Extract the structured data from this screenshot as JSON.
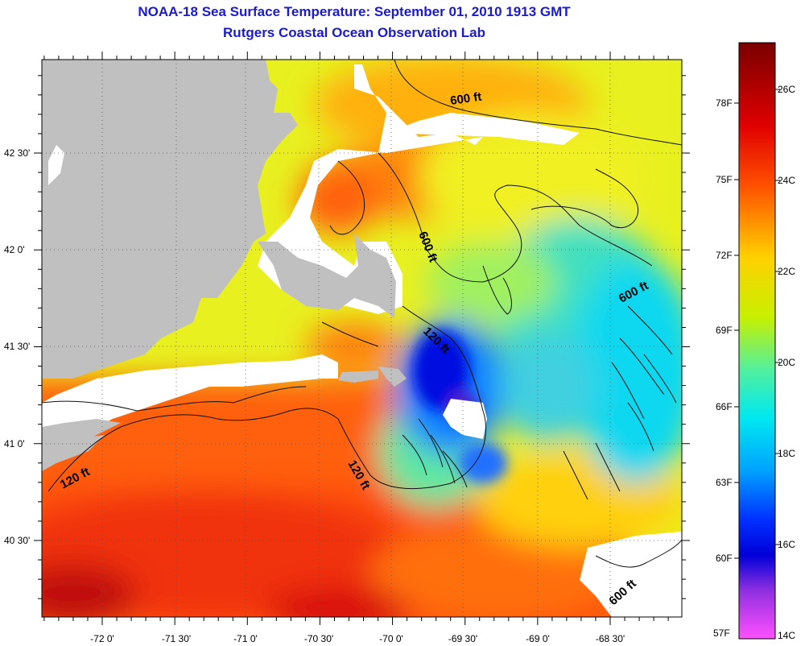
{
  "header": {
    "title": "NOAA-18 Sea Surface Temperature:  September 01, 2010 1913 GMT",
    "subtitle": "Rutgers Coastal Ocean Observation Lab"
  },
  "map": {
    "region": "Cape Cod / Gulf of Maine / Georges Bank",
    "longitude_labels": [
      "-72 0'",
      "-71 30'",
      "-71 0'",
      "-70 30'",
      "-70 0'",
      "-69 30'",
      "-69 0'",
      "-68 30'"
    ],
    "latitude_labels": [
      "42 30'",
      "42 0'",
      "41 30'",
      "41 0'",
      "40 30'"
    ],
    "contour_labels": [
      "600 ft",
      "600 ft",
      "600 ft",
      "600 ft",
      "120 ft",
      "120 ft",
      "120 ft"
    ],
    "land_color": "#c0c0c0",
    "nodata_color": "#ffffff"
  },
  "colorbar": {
    "fahrenheit_labels": [
      "78F",
      "75F",
      "72F",
      "69F",
      "66F",
      "63F",
      "60F",
      "57F"
    ],
    "celsius_labels": [
      "26C",
      "24C",
      "22C",
      "20C",
      "18C",
      "16C",
      "14C"
    ],
    "gradient_colors": [
      "#7a0000",
      "#c00000",
      "#ff2000",
      "#ff6000",
      "#ffa000",
      "#ffe000",
      "#c8f000",
      "#70f070",
      "#20e0d0",
      "#00b0f0",
      "#0060ff",
      "#0000e0",
      "#6030d0",
      "#c040e0",
      "#ff60ff"
    ]
  }
}
